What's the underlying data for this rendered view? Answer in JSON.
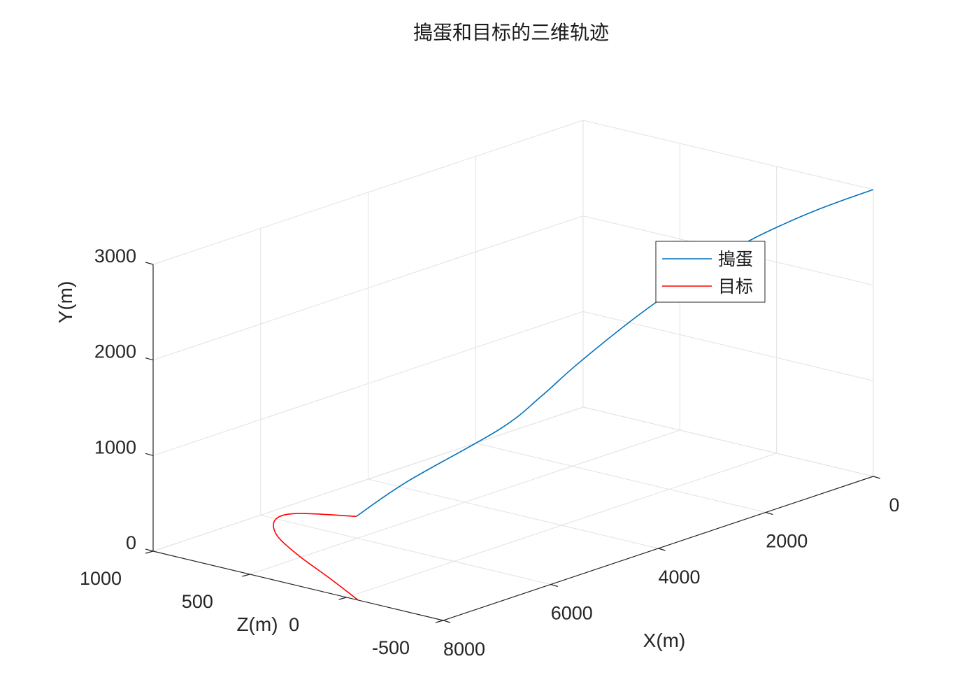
{
  "chart_data": {
    "type": "line",
    "projection": "3d",
    "title": "搗蛋和目标的三维轨迹",
    "xlabel": "X(m)",
    "ylabel": "Y(m)",
    "zlabel": "Z(m)",
    "xlim": [
      0,
      8000
    ],
    "ylim": [
      0,
      3000
    ],
    "zlim": [
      -500,
      1000
    ],
    "x_direction": "reverse",
    "xticks": [
      0,
      2000,
      4000,
      6000,
      8000
    ],
    "xtick_labels": [
      "0",
      "2000",
      "4000",
      "6000",
      "8000"
    ],
    "yticks": [
      0,
      1000,
      2000,
      3000
    ],
    "ytick_labels": [
      "0",
      "1000",
      "2000",
      "3000"
    ],
    "zticks": [
      -500,
      0,
      500,
      1000
    ],
    "ztick_labels": [
      "-500",
      "0",
      "500",
      "1000"
    ],
    "grid": true,
    "legend_position": "east",
    "series": [
      {
        "name": "搗蛋",
        "color": "#0072bd",
        "x": [
          0,
          500,
          1000,
          1500,
          2000,
          2500,
          3000,
          3500,
          4000,
          4300,
          4600,
          5100,
          5300
        ],
        "y": [
          3000,
          2990,
          2960,
          2900,
          2800,
          2630,
          2400,
          2100,
          1700,
          1400,
          1050,
          430,
          0
        ],
        "z": [
          -500,
          -495,
          -480,
          -455,
          -415,
          -360,
          -290,
          -195,
          -70,
          20,
          150,
          490,
          700
        ]
      },
      {
        "name": "目标",
        "color": "#ff0000",
        "x": [
          5300,
          5650,
          6000,
          6500,
          7000,
          7500,
          8000
        ],
        "y": [
          0,
          0,
          0,
          0,
          0,
          0,
          0
        ],
        "z": [
          700,
          900,
          920,
          780,
          530,
          230,
          -60
        ]
      }
    ]
  }
}
